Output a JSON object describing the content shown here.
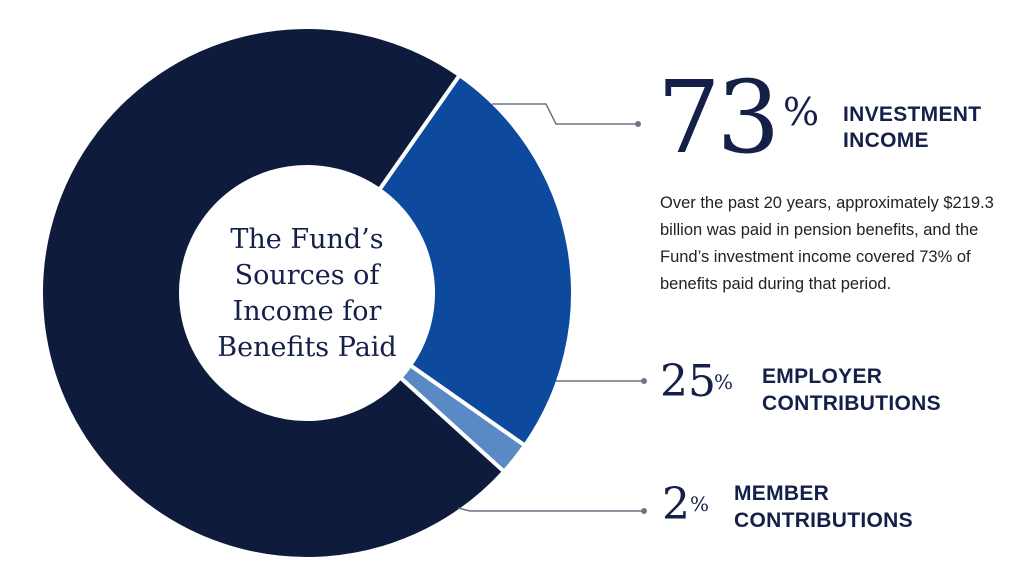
{
  "chart_data": {
    "type": "pie",
    "title_lines": [
      "The Fund’s",
      "Sources of",
      "Income for",
      "Benefits Paid"
    ],
    "series": [
      {
        "name": "INVESTMENT INCOME",
        "value": 73,
        "pct_label": "73",
        "label_lines": [
          "INVESTMENT",
          "INCOME"
        ],
        "color": "#0e1b3c"
      },
      {
        "name": "EMPLOYER CONTRIBUTIONS",
        "value": 25,
        "pct_label": "25",
        "label_lines": [
          "EMPLOYER",
          "CONTRIBUTIONS"
        ],
        "color": "#0d4a9e"
      },
      {
        "name": "MEMBER CONTRIBUTIONS",
        "value": 2,
        "pct_label": "2",
        "label_lines": [
          "MEMBER",
          "CONTRIBUTIONS"
        ],
        "color": "#5a8ac6"
      }
    ],
    "percent_sign": "%",
    "description": "Over the past 20 years, approximately $219.3 billion was paid in pension benefits, and the Fund’s investment income covered 73% of benefits paid during that period.",
    "description_lines": [
      "Over the past 20 years, approximately $219.3",
      "billion was paid in pension benefits, and the",
      "Fund’s investment income covered 73% of",
      "benefits paid during that period."
    ]
  }
}
